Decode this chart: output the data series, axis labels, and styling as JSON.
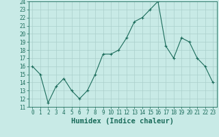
{
  "x": [
    0,
    1,
    2,
    3,
    4,
    5,
    6,
    7,
    8,
    9,
    10,
    11,
    12,
    13,
    14,
    15,
    16,
    17,
    18,
    19,
    20,
    21,
    22,
    23
  ],
  "y": [
    16,
    15,
    11.5,
    13.5,
    14.5,
    13,
    12,
    13,
    15,
    17.5,
    17.5,
    18,
    19.5,
    21.5,
    22,
    23,
    24,
    18.5,
    17,
    19.5,
    19,
    17,
    16,
    14
  ],
  "xlabel": "Humidex (Indice chaleur)",
  "ylim": [
    11,
    24
  ],
  "xlim_min": -0.5,
  "xlim_max": 23.5,
  "yticks": [
    11,
    12,
    13,
    14,
    15,
    16,
    17,
    18,
    19,
    20,
    21,
    22,
    23,
    24
  ],
  "xticks": [
    0,
    1,
    2,
    3,
    4,
    5,
    6,
    7,
    8,
    9,
    10,
    11,
    12,
    13,
    14,
    15,
    16,
    17,
    18,
    19,
    20,
    21,
    22,
    23
  ],
  "line_color": "#1a6b5a",
  "marker": "+",
  "bg_color": "#c8eae6",
  "grid_color": "#aacfcb",
  "tick_label_fontsize": 5.5,
  "xlabel_fontsize": 7.5
}
